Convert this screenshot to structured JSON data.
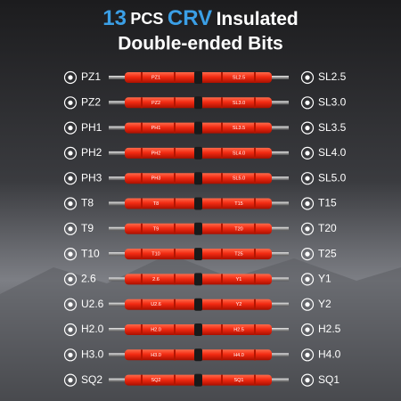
{
  "header": {
    "title_count": "13",
    "title_unit": "PCS",
    "title_brand": "CRV",
    "title_word": "Insulated",
    "subtitle": "Double-ended Bits"
  },
  "bits": [
    {
      "left": "PZ1",
      "right": "SL2.5"
    },
    {
      "left": "PZ2",
      "right": "SL3.0"
    },
    {
      "left": "PH1",
      "right": "SL3.5"
    },
    {
      "left": "PH2",
      "right": "SL4.0"
    },
    {
      "left": "PH3",
      "right": "SL5.0"
    },
    {
      "left": "T8",
      "right": "T15"
    },
    {
      "left": "T9",
      "right": "T20"
    },
    {
      "left": "T10",
      "right": "T25"
    },
    {
      "left": "2.6",
      "right": "Y1"
    },
    {
      "left": "U2.6",
      "right": "Y2"
    },
    {
      "left": "H2.0",
      "right": "H2.5"
    },
    {
      "left": "H3.0",
      "right": "H4.0"
    },
    {
      "left": "SQ2",
      "right": "SQ1"
    }
  ]
}
